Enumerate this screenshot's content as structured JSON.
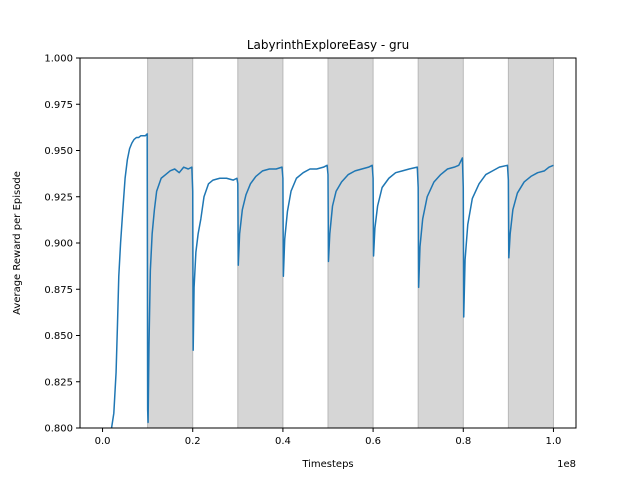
{
  "chart_data": {
    "type": "line",
    "title": "LabyrinthExploreEasy - gru",
    "xlabel": "Timesteps",
    "ylabel": "Average Reward per Episode",
    "x_offset_label": "1e8",
    "xlim": [
      -0.05,
      1.05
    ],
    "ylim": [
      0.8,
      1.0
    ],
    "x_ticks": [
      0.0,
      0.2,
      0.4,
      0.6,
      0.8,
      1.0
    ],
    "x_tick_labels": [
      "0.0",
      "0.2",
      "0.4",
      "0.6",
      "0.8",
      "1.0"
    ],
    "y_ticks": [
      0.8,
      0.825,
      0.85,
      0.875,
      0.9,
      0.925,
      0.95,
      0.975,
      1.0
    ],
    "y_tick_labels": [
      "0.800",
      "0.825",
      "0.850",
      "0.875",
      "0.900",
      "0.925",
      "0.950",
      "0.975",
      "1.000"
    ],
    "shaded_regions": [
      [
        0.1,
        0.2
      ],
      [
        0.3,
        0.4
      ],
      [
        0.5,
        0.6
      ],
      [
        0.7,
        0.8
      ],
      [
        0.9,
        1.0
      ]
    ],
    "shade_color": "#d6d6d6",
    "line_color": "#1f77b4",
    "series": [
      {
        "values_x": [
          0.02,
          0.025,
          0.03,
          0.033,
          0.036,
          0.04,
          0.045,
          0.05,
          0.055,
          0.06,
          0.065,
          0.07,
          0.075,
          0.08,
          0.085,
          0.09,
          0.095,
          0.099,
          0.1,
          0.101,
          0.103,
          0.106,
          0.11,
          0.115,
          0.12,
          0.13,
          0.14,
          0.15,
          0.16,
          0.17,
          0.18,
          0.19,
          0.198,
          0.2,
          0.201,
          0.203,
          0.207,
          0.212,
          0.218,
          0.225,
          0.235,
          0.245,
          0.26,
          0.275,
          0.29,
          0.298,
          0.3,
          0.301,
          0.304,
          0.31,
          0.318,
          0.328,
          0.34,
          0.355,
          0.37,
          0.385,
          0.398,
          0.4,
          0.401,
          0.404,
          0.41,
          0.418,
          0.43,
          0.445,
          0.46,
          0.475,
          0.49,
          0.498,
          0.5,
          0.501,
          0.504,
          0.51,
          0.518,
          0.53,
          0.545,
          0.56,
          0.575,
          0.59,
          0.598,
          0.6,
          0.601,
          0.604,
          0.61,
          0.62,
          0.635,
          0.65,
          0.665,
          0.68,
          0.698,
          0.7,
          0.701,
          0.704,
          0.71,
          0.72,
          0.735,
          0.75,
          0.765,
          0.78,
          0.79,
          0.798,
          0.8,
          0.801,
          0.804,
          0.81,
          0.82,
          0.835,
          0.85,
          0.865,
          0.88,
          0.898,
          0.9,
          0.901,
          0.904,
          0.91,
          0.92,
          0.935,
          0.95,
          0.965,
          0.98,
          0.99,
          1.0
        ],
        "values": [
          0.8,
          0.808,
          0.83,
          0.855,
          0.882,
          0.9,
          0.918,
          0.935,
          0.945,
          0.951,
          0.954,
          0.956,
          0.957,
          0.957,
          0.958,
          0.958,
          0.958,
          0.959,
          0.81,
          0.803,
          0.845,
          0.885,
          0.905,
          0.918,
          0.928,
          0.935,
          0.937,
          0.939,
          0.94,
          0.938,
          0.941,
          0.94,
          0.941,
          0.928,
          0.842,
          0.876,
          0.895,
          0.905,
          0.913,
          0.925,
          0.932,
          0.934,
          0.935,
          0.935,
          0.934,
          0.935,
          0.932,
          0.888,
          0.905,
          0.918,
          0.926,
          0.932,
          0.936,
          0.939,
          0.94,
          0.94,
          0.941,
          0.935,
          0.882,
          0.902,
          0.917,
          0.928,
          0.935,
          0.938,
          0.94,
          0.94,
          0.941,
          0.942,
          0.937,
          0.89,
          0.905,
          0.92,
          0.928,
          0.933,
          0.937,
          0.939,
          0.94,
          0.941,
          0.942,
          0.935,
          0.893,
          0.908,
          0.92,
          0.93,
          0.935,
          0.938,
          0.939,
          0.94,
          0.941,
          0.93,
          0.876,
          0.898,
          0.913,
          0.925,
          0.933,
          0.937,
          0.94,
          0.941,
          0.942,
          0.946,
          0.93,
          0.86,
          0.891,
          0.91,
          0.924,
          0.932,
          0.937,
          0.939,
          0.941,
          0.942,
          0.934,
          0.892,
          0.905,
          0.918,
          0.927,
          0.933,
          0.936,
          0.938,
          0.939,
          0.941,
          0.942
        ]
      }
    ],
    "grid": false,
    "legend": "none"
  }
}
